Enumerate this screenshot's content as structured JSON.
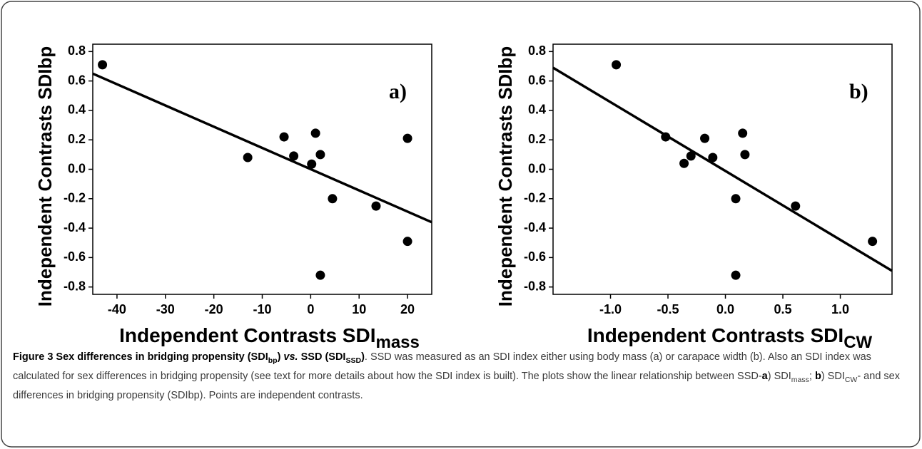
{
  "chart_data": [
    {
      "type": "scatter",
      "ylabel": "Independent Contrasts SDIbp",
      "xlabel": "Independent Contrasts SDI",
      "xlabel_sub": "mass",
      "annotation": "a)",
      "x": [
        -43,
        -13,
        -5.5,
        -3.5,
        0.2,
        1,
        2,
        4.5,
        13.5,
        20,
        20,
        2
      ],
      "values": [
        0.71,
        0.08,
        0.22,
        0.09,
        0.035,
        0.245,
        0.1,
        -0.2,
        -0.25,
        0.21,
        -0.49,
        -0.72
      ],
      "color": "#000000",
      "trendline": {
        "x": [
          -45,
          25
        ],
        "y": [
          0.65,
          -0.36
        ]
      },
      "xlim": [
        -45,
        25
      ],
      "xticks": [
        -40,
        -30,
        -20,
        -10,
        0,
        10,
        20
      ],
      "ylim": [
        -0.85,
        0.85
      ],
      "yticks": [
        {
          "value": -0.8,
          "label": "-0.8"
        },
        {
          "value": -0.6,
          "label": "-0.6"
        },
        {
          "value": -0.4,
          "label": "-0.4"
        },
        {
          "value": -0.2,
          "label": "-0.2"
        },
        {
          "value": 0,
          "label": "0.0"
        },
        {
          "value": 0.2,
          "label": "0.2"
        },
        {
          "value": 0.4,
          "label": "0.4"
        },
        {
          "value": 0.6,
          "label": "0.6"
        },
        {
          "value": 0.8,
          "label": "0.8"
        }
      ]
    },
    {
      "type": "scatter",
      "ylabel": "Independent Contrasts SDIbp",
      "xlabel": "Independent Contrasts SDI",
      "xlabel_sub": "CW",
      "annotation": "b)",
      "x": [
        -0.95,
        -0.52,
        -0.36,
        -0.3,
        -0.18,
        -0.11,
        0.09,
        0.09,
        0.15,
        0.17,
        0.61,
        1.28
      ],
      "values": [
        0.71,
        0.22,
        0.04,
        0.09,
        0.21,
        0.08,
        -0.2,
        -0.72,
        0.245,
        0.1,
        -0.25,
        -0.49
      ],
      "color": "#000000",
      "trendline": {
        "x": [
          -1.5,
          1.45
        ],
        "y": [
          0.69,
          -0.69
        ]
      },
      "xlim": [
        -1.5,
        1.45
      ],
      "xticks": [
        {
          "value": -1,
          "label": "-1.0"
        },
        {
          "value": -0.5,
          "label": "-0.5"
        },
        {
          "value": 0,
          "label": "0.0"
        },
        {
          "value": 0.5,
          "label": "0.5"
        },
        {
          "value": 1,
          "label": "1.0"
        }
      ],
      "ylim": [
        -0.85,
        0.85
      ],
      "yticks": [
        {
          "value": -0.8,
          "label": "-0.8"
        },
        {
          "value": -0.6,
          "label": "-0.6"
        },
        {
          "value": -0.4,
          "label": "-0.4"
        },
        {
          "value": -0.2,
          "label": "-0.2"
        },
        {
          "value": 0,
          "label": "0.0"
        },
        {
          "value": 0.2,
          "label": "0.2"
        },
        {
          "value": 0.4,
          "label": "0.4"
        },
        {
          "value": 0.6,
          "label": "0.6"
        },
        {
          "value": 0.8,
          "label": "0.8"
        }
      ]
    }
  ],
  "caption": [
    {
      "text": "Figure 3 Sex differences in bridging propensity (SDI",
      "style": "b"
    },
    {
      "text": "bp",
      "style": "b sub"
    },
    {
      "text": ") ",
      "style": "b"
    },
    {
      "text": "vs.",
      "style": "b i"
    },
    {
      "text": " SSD (SDI",
      "style": "b"
    },
    {
      "text": "SSD",
      "style": "b sub"
    },
    {
      "text": ")",
      "style": "b"
    },
    {
      "text": ". SSD was measured as an SDI index either using body mass (a) or carapace width (b). Also an SDI index was calculated for sex differences in bridging propensity (see text for more details about how the SDI index is built). The plots show the linear relationship between SSD-",
      "style": "n"
    },
    {
      "text": "a",
      "style": "b"
    },
    {
      "text": ") SDI",
      "style": "n"
    },
    {
      "text": "mass",
      "style": "sub"
    },
    {
      "text": "; ",
      "style": "n"
    },
    {
      "text": "b",
      "style": "b"
    },
    {
      "text": ") SDI",
      "style": "n"
    },
    {
      "text": "CW",
      "style": "sub"
    },
    {
      "text": "- and sex differences in bridging propensity (SDIbp). Points are independent contrasts.",
      "style": "n"
    }
  ]
}
